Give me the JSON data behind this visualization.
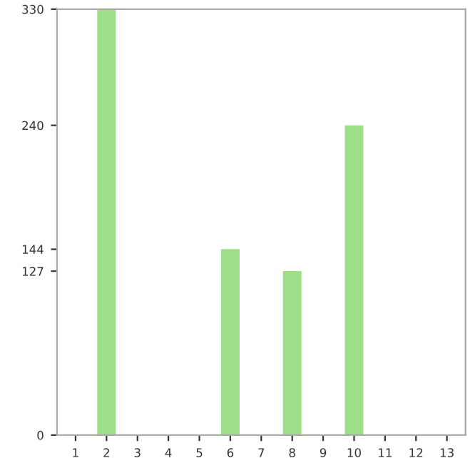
{
  "chart_data": {
    "type": "bar",
    "categories": [
      "1",
      "2",
      "3",
      "4",
      "5",
      "6",
      "7",
      "8",
      "9",
      "10",
      "11",
      "12",
      "13"
    ],
    "values": [
      0,
      330,
      0,
      0,
      0,
      144,
      0,
      127,
      0,
      240,
      0,
      0,
      0
    ],
    "color": "#9ede88",
    "ylim": [
      0,
      330
    ],
    "yticks": [
      0,
      127,
      144,
      240,
      330
    ],
    "grid": false,
    "legend": false
  }
}
